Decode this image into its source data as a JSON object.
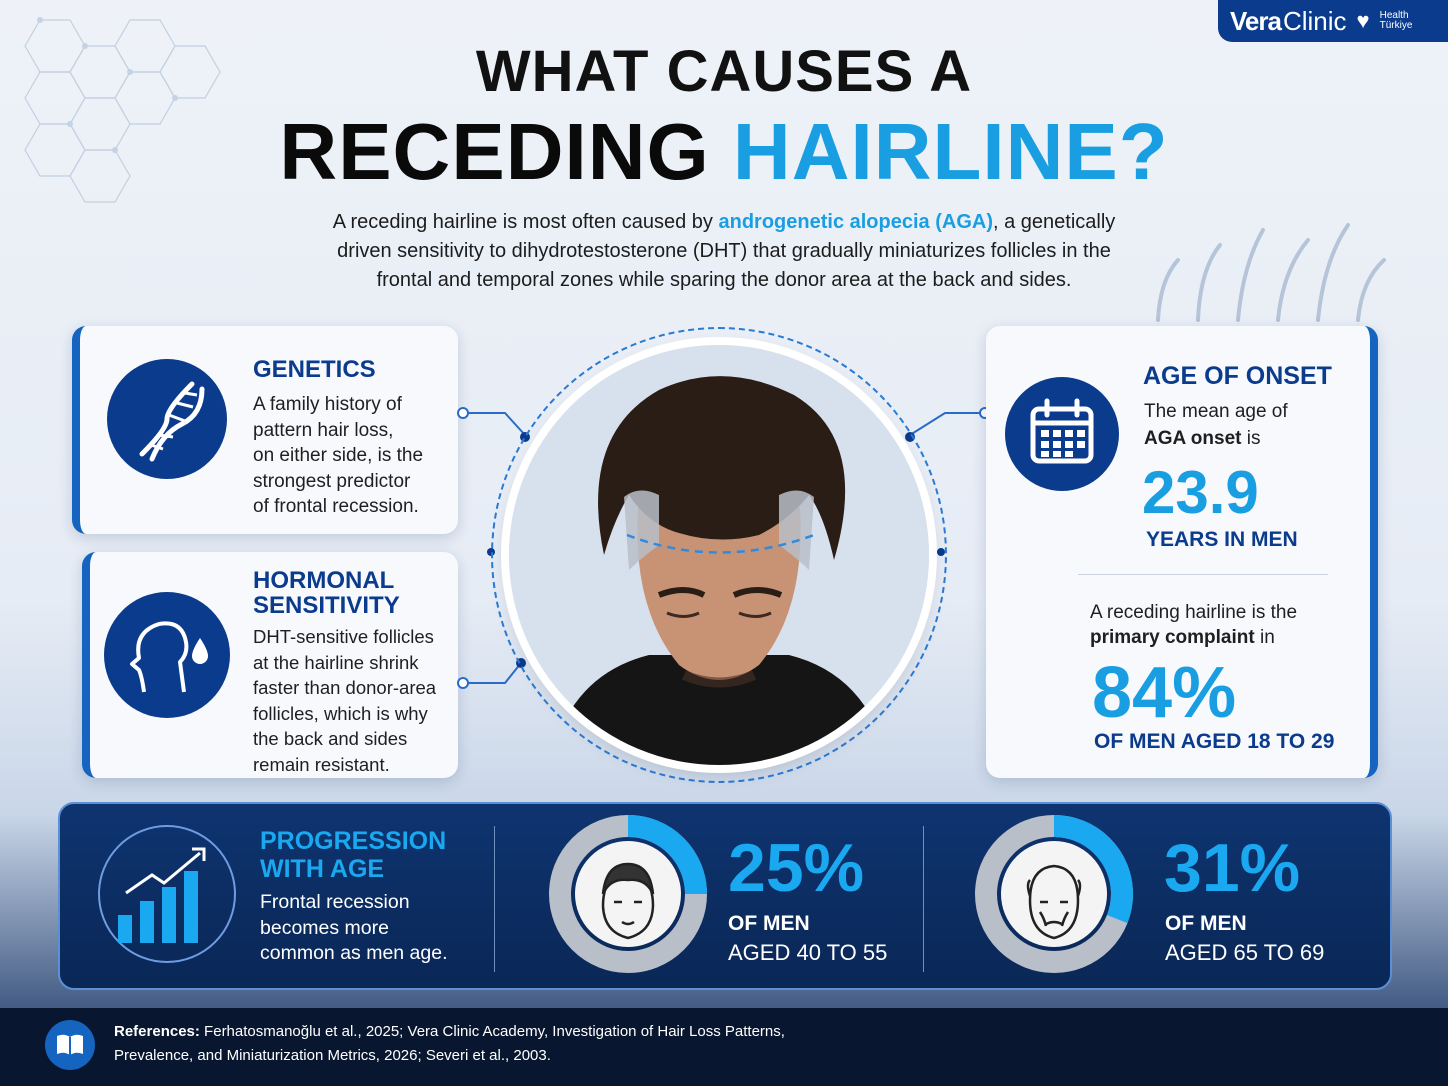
{
  "logo": {
    "brand_bold": "Vera",
    "brand_regular": "Clinic",
    "partner_line1": "Health",
    "partner_line2": "Türkiye"
  },
  "title": {
    "line1": "WHAT CAUSES A",
    "line2_dark": "RECEDING",
    "line2_blue": "HAIRLINE?"
  },
  "intro": {
    "before": "A receding hairline is most often caused by ",
    "highlight": "androgenetic alopecia (AGA)",
    "after": ", a genetically driven sensitivity to dihydrotestosterone (DHT) that gradually miniaturizes follicles in the frontal and temporal zones while sparing the donor area at the back and sides."
  },
  "cards": {
    "genetics": {
      "title": "GENETICS",
      "lines": [
        "A family history of",
        "pattern hair loss,",
        "on either side, is the",
        "strongest predictor",
        "of frontal recession."
      ],
      "icon": "dna-icon"
    },
    "hormonal": {
      "title_l1": "HORMONAL",
      "title_l2": "SENSITIVITY",
      "lines": [
        "DHT-sensitive follicles",
        "at the hairline shrink",
        "faster than donor-area",
        "follicles, which is why",
        "the back and sides",
        "remain resistant."
      ],
      "icon": "head-drop-icon"
    }
  },
  "age_card": {
    "title": "AGE OF ONSET",
    "text_l1": "The mean age of",
    "text_l2_bold": "AGA onset",
    "text_l2_rest": " is",
    "stat": "23.9",
    "stat_caption": "YEARS IN MEN",
    "text2_l1": "A receding hairline is the",
    "text2_l2_bold": "primary complaint",
    "text2_l2_rest": " in",
    "stat2": "84%",
    "stat2_caption": "OF MEN AGED 18 TO 29",
    "icon": "calendar-icon"
  },
  "progression": {
    "title_l1": "PROGRESSION",
    "title_l2": "WITH AGE",
    "lines": [
      "Frontal recession",
      "becomes more",
      "common as men age."
    ],
    "icon": "growth-chart-icon",
    "stats": [
      {
        "pct": "25%",
        "cap1": "OF MEN",
        "cap2": "AGED 40 TO 55",
        "fraction": 0.25
      },
      {
        "pct": "31%",
        "cap1": "OF MEN",
        "cap2": "AGED 65 TO 69",
        "fraction": 0.31
      }
    ],
    "colors": {
      "ring_fill": "#1aa8f0",
      "ring_track": "#b9bfc8"
    }
  },
  "references": {
    "label": "References:",
    "line1": " Ferhatosmanoğlu et al., 2025; Vera Clinic Academy, Investigation of Hair Loss Patterns,",
    "line2": "Prevalence, and Miniaturization Metrics, 2026; Severi et al., 2003.",
    "icon": "book-icon"
  },
  "colors": {
    "navy": "#0b3b8c",
    "accent_blue": "#1a9ee2"
  }
}
